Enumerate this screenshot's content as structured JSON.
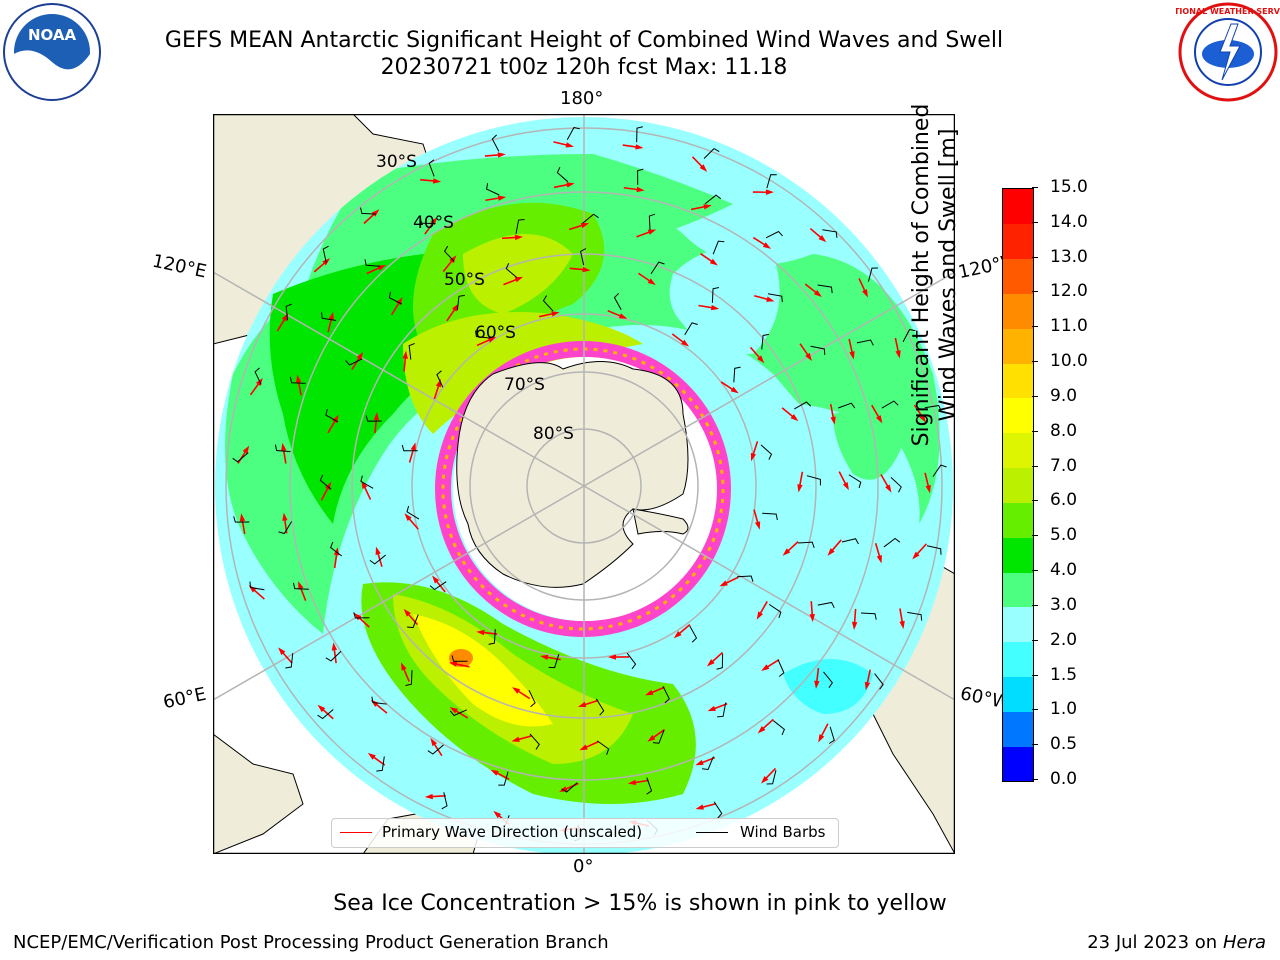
{
  "title": {
    "line1": "GEFS MEAN Antarctic Significant Height of Combined Wind Waves and Swell",
    "line2": "20230721 t00z 120h fcst   Max: 11.18"
  },
  "logos": {
    "noaa": {
      "text": "NOAA",
      "icon": "noaa-logo-icon"
    },
    "nws": {
      "text": "NATIONAL WEATHER SERVICE",
      "icon": "nws-logo-icon"
    }
  },
  "map": {
    "projection": "south-polar-stereographic",
    "longitude_labels": {
      "top": "180°",
      "bottom": "0°",
      "upper_left": "120°E",
      "lower_left": "60°E",
      "upper_right": "120°W",
      "lower_right": "60°W"
    },
    "latitude_labels": [
      "30°S",
      "40°S",
      "50°S",
      "60°S",
      "70°S",
      "80°S"
    ],
    "colors": {
      "land": "#efedd9",
      "graticule": "#b4b4b4",
      "wave_arrow": "#ff0000",
      "wind_barb": "#000000",
      "sea_ice": "#ff44cc"
    }
  },
  "legend": {
    "primary_wave": "Primary Wave Direction (unscaled)",
    "wind_barbs": "Wind Barbs"
  },
  "colorbar": {
    "label_line1": "Significant Height of Combined",
    "label_line2": "Wind Waves and Swell [m]",
    "ticks": [
      "0.0",
      "0.5",
      "1.0",
      "1.5",
      "2.0",
      "3.0",
      "4.0",
      "5.0",
      "6.0",
      "7.0",
      "8.0",
      "9.0",
      "10.0",
      "11.0",
      "12.0",
      "13.0",
      "14.0",
      "15.0"
    ],
    "colors": [
      "#0000ff",
      "#0077ff",
      "#00ddff",
      "#44ffff",
      "#99ffff",
      "#4dff80",
      "#00e600",
      "#66ee00",
      "#bbf000",
      "#ddf500",
      "#ffff00",
      "#ffe000",
      "#ffb300",
      "#ff8c00",
      "#ff5a00",
      "#ff2200",
      "#ff0000"
    ]
  },
  "note": "Sea Ice Concentration > 15% is shown in pink to yellow",
  "footer": {
    "left": "NCEP/EMC/Verification Post Processing Product Generation Branch",
    "date": "23 Jul 2023 on ",
    "host": "Hera"
  }
}
